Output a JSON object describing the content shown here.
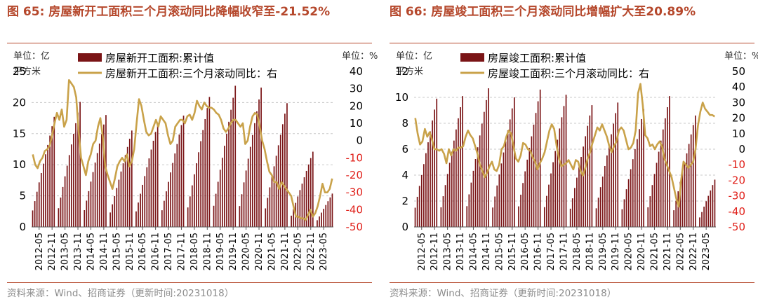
{
  "source_text": "资料来源：Wind、招商证券（更新时间:20231018）",
  "charts": [
    {
      "title": "图 65:  房屋新开工面积三个月滚动同比降幅收窄至-21.52%",
      "left_unit": "单位：亿",
      "left_unit_sub": "平方米",
      "right_unit": "单位：%",
      "legend_bar": "房屋新开工面积:累计值",
      "legend_line": "房屋新开工面积:三个月滚动同比：右",
      "left_ticks": [
        "25",
        "20",
        "15",
        "10",
        "5",
        "0"
      ],
      "right_ticks": [
        "40",
        "30",
        "20",
        "10",
        "0",
        "-10",
        "-20",
        "-30",
        "-40",
        "-50"
      ],
      "x_ticks": [
        "2012-05",
        "2012-11",
        "2013-05",
        "2013-11",
        "2014-05",
        "2014-11",
        "2015-05",
        "2015-11",
        "2016-05",
        "2016-11",
        "2017-05",
        "2017-11",
        "2018-05",
        "2018-11",
        "2019-05",
        "2019-11",
        "2020-05",
        "2020-11",
        "2021-05",
        "2021-11",
        "2022-05",
        "2022-11",
        "2023-05"
      ]
    },
    {
      "title": "图 66:  房屋竣工面积三个月滚动同比增幅扩大至20.89%",
      "left_unit": "单位：亿",
      "left_unit_sub": "平方米",
      "right_unit": "单位：%",
      "legend_bar": "房屋竣工面积:累计值",
      "legend_line": "房屋竣工面积:三个月滚动同比：右",
      "left_ticks": [
        "12",
        "10",
        "8",
        "6",
        "4",
        "2",
        "0"
      ],
      "right_ticks": [
        "50",
        "40",
        "30",
        "20",
        "10",
        "0",
        "-10",
        "-20",
        "-30",
        "-40",
        "-50"
      ],
      "x_ticks": [
        "2012-05",
        "2012-11",
        "2013-05",
        "2013-11",
        "2014-05",
        "2014-11",
        "2015-05",
        "2015-11",
        "2016-05",
        "2016-11",
        "2017-05",
        "2017-11",
        "2018-05",
        "2018-11",
        "2019-05",
        "2019-11",
        "2020-05",
        "2020-11",
        "2021-05",
        "2021-11",
        "2022-05",
        "2022-11",
        "2023-05"
      ]
    }
  ],
  "chart_data": [
    {
      "type": "bar",
      "title": "图 65:  房屋新开工面积三个月滚动同比降幅收窄至-21.52%",
      "x_start": "2012-02",
      "x_end": "2023-09",
      "bar_series": {
        "name": "房屋新开工面积:累计值",
        "axis": "left",
        "unit": "亿平方米",
        "ylim": [
          0,
          25
        ],
        "annual_peaks": [
          17.7,
          20.1,
          18.0,
          15.5,
          16.7,
          17.9,
          20.9,
          22.7,
          22.4,
          19.9,
          12.1,
          7.2
        ]
      },
      "line_series": {
        "name": "房屋新开工面积:三个月滚动同比：右",
        "axis": "right",
        "unit": "%",
        "ylim": [
          -50,
          40
        ],
        "values": [
          -8,
          -14,
          -16,
          -12,
          -10,
          -6,
          -5,
          -3,
          3,
          10,
          16,
          12,
          18,
          8,
          12,
          35,
          33,
          31,
          25,
          5,
          -10,
          -15,
          -20,
          -12,
          -8,
          -2,
          0,
          8,
          13,
          2,
          -15,
          -20,
          -24,
          -28,
          -22,
          -15,
          -12,
          -10,
          -12,
          -8,
          -15,
          -12,
          -5,
          10,
          24,
          20,
          12,
          5,
          3,
          4,
          8,
          12,
          8,
          14,
          12,
          10,
          3,
          -2,
          0,
          8,
          10,
          12,
          12,
          10,
          14,
          15,
          12,
          16,
          23,
          20,
          18,
          22,
          20,
          19,
          19,
          18,
          16,
          15,
          12,
          7,
          5,
          7,
          10,
          12,
          12,
          10,
          8,
          10,
          -2,
          0,
          8,
          14,
          16,
          15,
          8,
          0,
          -5,
          -12,
          -18,
          -20,
          -24,
          -24,
          -28,
          -24,
          -26,
          -28,
          -30,
          -32,
          -38,
          -44,
          -44,
          -45,
          -45,
          -46,
          -43,
          -40,
          -44,
          -42,
          -38,
          -32,
          -25,
          -30,
          -30,
          -28,
          -22
        ]
      }
    },
    {
      "type": "bar",
      "title": "图 66:  房屋竣工面积三个月滚动同比增幅扩大至20.89%",
      "x_start": "2012-02",
      "x_end": "2023-09",
      "bar_series": {
        "name": "房屋竣工面积:累计值",
        "axis": "left",
        "unit": "亿平方米",
        "ylim": [
          0,
          12
        ],
        "annual_peaks": [
          9.9,
          10.1,
          10.7,
          10.0,
          10.6,
          10.2,
          9.4,
          9.6,
          9.1,
          10.1,
          8.6,
          4.9
        ]
      },
      "line_series": {
        "name": "房屋竣工面积:三个月滚动同比：右",
        "axis": "right",
        "unit": "%",
        "ylim": [
          -50,
          50
        ],
        "values": [
          20,
          10,
          3,
          5,
          13,
          8,
          11,
          6,
          0,
          0,
          -1,
          0,
          -3,
          -9,
          0,
          -4,
          0,
          -1,
          1,
          1,
          2,
          8,
          12,
          9,
          7,
          2,
          -3,
          -10,
          -14,
          -18,
          -15,
          -11,
          -8,
          -13,
          -14,
          -10,
          0,
          2,
          8,
          12,
          10,
          2,
          -6,
          -8,
          -4,
          4,
          3,
          0,
          -1,
          -5,
          -8,
          -13,
          -9,
          -6,
          -2,
          5,
          12,
          16,
          13,
          2,
          -6,
          -11,
          -10,
          -9,
          -7,
          -10,
          -13,
          -7,
          -8,
          -14,
          -17,
          -12,
          -6,
          -2,
          4,
          9,
          14,
          12,
          16,
          12,
          8,
          2,
          -2,
          2,
          5,
          12,
          14,
          12,
          6,
          0,
          1,
          4,
          12,
          36,
          42,
          28,
          9,
          7,
          2,
          3,
          0,
          3,
          5,
          2,
          -6,
          -10,
          -14,
          -18,
          -25,
          -32,
          -37,
          -20,
          -8,
          -10,
          -12,
          -10,
          -8,
          0,
          15,
          24,
          30,
          26,
          24,
          22,
          22,
          21
        ]
      }
    }
  ]
}
